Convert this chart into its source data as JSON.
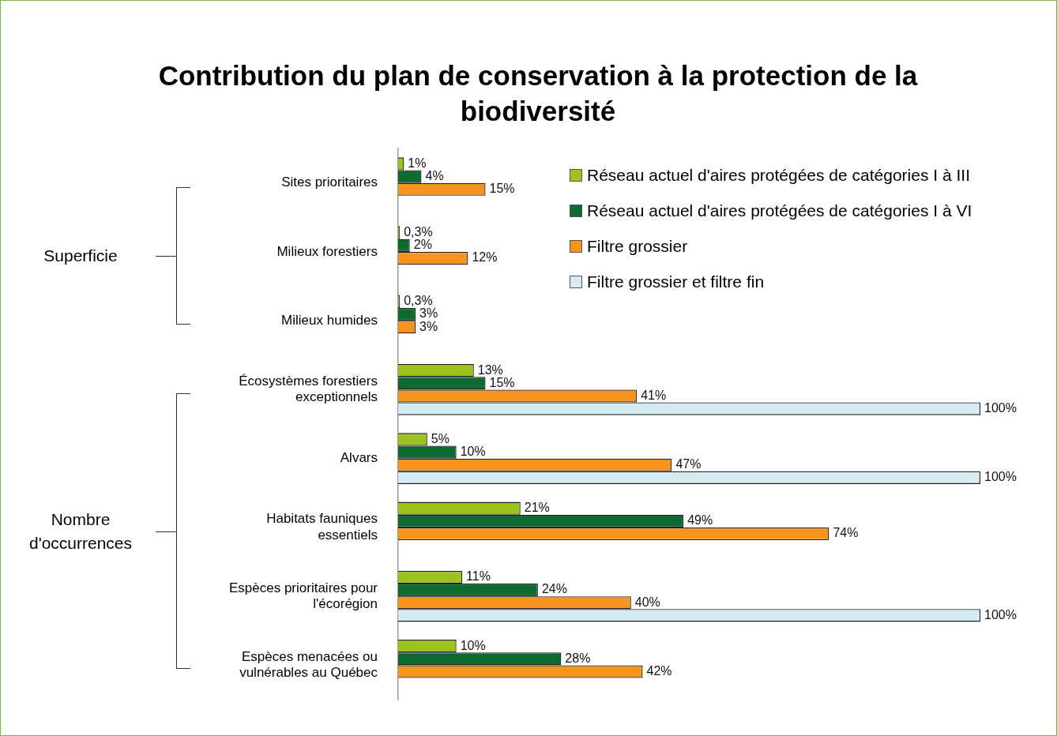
{
  "chart_data": {
    "type": "bar",
    "orientation": "horizontal",
    "title": "Contribution du plan de conservation à la protection de la biodiversité",
    "categories": [
      "Sites prioritaires",
      "Milieux forestiers",
      "Milieux humides",
      "Écosystèmes forestiers exceptionnels",
      "Alvars",
      "Habitats fauniques essentiels",
      "Espèces prioritaires pour l'écorégion",
      "Espèces menacées ou vulnérables au Québec"
    ],
    "series": [
      {
        "name": "Réseau actuel d'aires protégées de catégories I à III",
        "color": "#9dc31f",
        "values": [
          1,
          0.3,
          0.3,
          13,
          5,
          21,
          11,
          10
        ],
        "value_labels": [
          "1%",
          "0,3%",
          "0,3%",
          "13%",
          "5%",
          "21%",
          "11%",
          "10%"
        ]
      },
      {
        "name": "Réseau actuel d'aires protégées de catégories I à VI",
        "color": "#0d6b2f",
        "values": [
          4,
          2,
          3,
          15,
          10,
          49,
          24,
          28
        ],
        "value_labels": [
          "4%",
          "2%",
          "3%",
          "15%",
          "10%",
          "49%",
          "24%",
          "28%"
        ]
      },
      {
        "name": "Filtre grossier",
        "color": "#f7941d",
        "values": [
          15,
          12,
          3,
          41,
          47,
          74,
          40,
          42
        ],
        "value_labels": [
          "15%",
          "12%",
          "3%",
          "41%",
          "47%",
          "74%",
          "40%",
          "42%"
        ]
      },
      {
        "name": "Filtre grossier et filtre fin",
        "color": "#d6ecf5",
        "values": [
          null,
          null,
          null,
          100,
          100,
          null,
          100,
          null
        ],
        "value_labels": [
          null,
          null,
          null,
          "100%",
          "100%",
          null,
          "100%",
          null
        ]
      }
    ],
    "xlim": [
      0,
      100
    ],
    "legend": "top right",
    "tick_labels": "y",
    "annotations": [
      "Superficie",
      "Nombre d'occurrences"
    ]
  }
}
